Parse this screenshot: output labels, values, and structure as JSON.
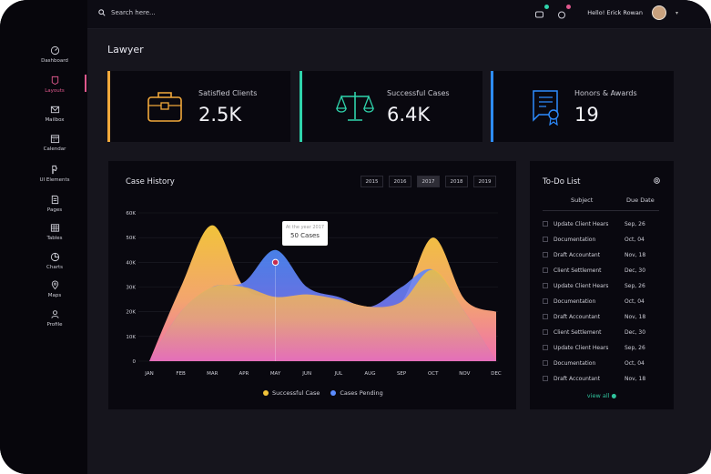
{
  "topbar": {
    "search_placeholder": "Search here...",
    "greeting": "Hello! Erick Rowan"
  },
  "sidebar": {
    "items": [
      {
        "label": "Dashboard",
        "icon": "gauge-icon"
      },
      {
        "label": "Layouts",
        "icon": "layout-icon"
      },
      {
        "label": "Mailbox",
        "icon": "mail-icon"
      },
      {
        "label": "Calendar",
        "icon": "calendar-icon"
      },
      {
        "label": "UI Elements",
        "icon": "puzzle-icon"
      },
      {
        "label": "Pages",
        "icon": "page-icon"
      },
      {
        "label": "Tables",
        "icon": "table-icon"
      },
      {
        "label": "Charts",
        "icon": "pie-chart-icon"
      },
      {
        "label": "Maps",
        "icon": "map-pin-icon"
      },
      {
        "label": "Profile",
        "icon": "user-icon"
      }
    ],
    "active": "Layouts"
  },
  "page": {
    "title": "Lawyer"
  },
  "stats": [
    {
      "label": "Satisfied Clients",
      "value": "2.5K",
      "icon": "briefcase-icon",
      "color": "#f2a93b"
    },
    {
      "label": "Successful Cases",
      "value": "6.4K",
      "icon": "scales-icon",
      "color": "#2fd3ab"
    },
    {
      "label": "Honors & Awards",
      "value": "19",
      "icon": "certificate-icon",
      "color": "#2d8cff"
    }
  ],
  "case_history": {
    "title": "Case History",
    "years": [
      "2015",
      "2016",
      "2017",
      "2018",
      "2019"
    ],
    "active_year": "2017",
    "tooltip": {
      "caption": "At the year 2017",
      "value": "50 Cases"
    }
  },
  "chart_data": {
    "type": "area",
    "categories": [
      "JAN",
      "FEB",
      "MAR",
      "APR",
      "MAY",
      "JUN",
      "JUL",
      "AUG",
      "SEP",
      "OCT",
      "NOV",
      "DEC"
    ],
    "ylim": [
      0,
      60000
    ],
    "yticks": [
      "0",
      "10K",
      "20K",
      "30K",
      "40K",
      "50K",
      "60K"
    ],
    "series": [
      {
        "name": "Successful Case",
        "color": "#f1c33a",
        "values": [
          0,
          30000,
          55000,
          30000,
          26000,
          27000,
          25000,
          22000,
          24000,
          50000,
          25000,
          20000
        ]
      },
      {
        "name": "Cases Pending",
        "color": "#5b8cff",
        "values": [
          0,
          20000,
          30000,
          32000,
          45000,
          30000,
          26000,
          22000,
          30000,
          37000,
          20000,
          0
        ]
      }
    ],
    "grid": true,
    "legend_position": "bottom"
  },
  "todo": {
    "title": "To-Do List",
    "col_subject": "Subject",
    "col_due": "Due Date",
    "rows": [
      {
        "subject": "Update Client Hears",
        "due": "Sep, 26"
      },
      {
        "subject": "Documentation",
        "due": "Oct, 04"
      },
      {
        "subject": "Draft Accountant",
        "due": "Nov, 18"
      },
      {
        "subject": "Client Settlement",
        "due": "Dec, 30"
      },
      {
        "subject": "Update Client Hears",
        "due": "Sep, 26"
      },
      {
        "subject": "Documentation",
        "due": "Oct, 04"
      },
      {
        "subject": "Draft Accountant",
        "due": "Nov, 18"
      },
      {
        "subject": "Client Settlement",
        "due": "Dec, 30"
      },
      {
        "subject": "Update Client Hears",
        "due": "Sep, 26"
      },
      {
        "subject": "Documentation",
        "due": "Oct, 04"
      },
      {
        "subject": "Draft Accountant",
        "due": "Nov, 18"
      }
    ],
    "view_all": "view all"
  }
}
